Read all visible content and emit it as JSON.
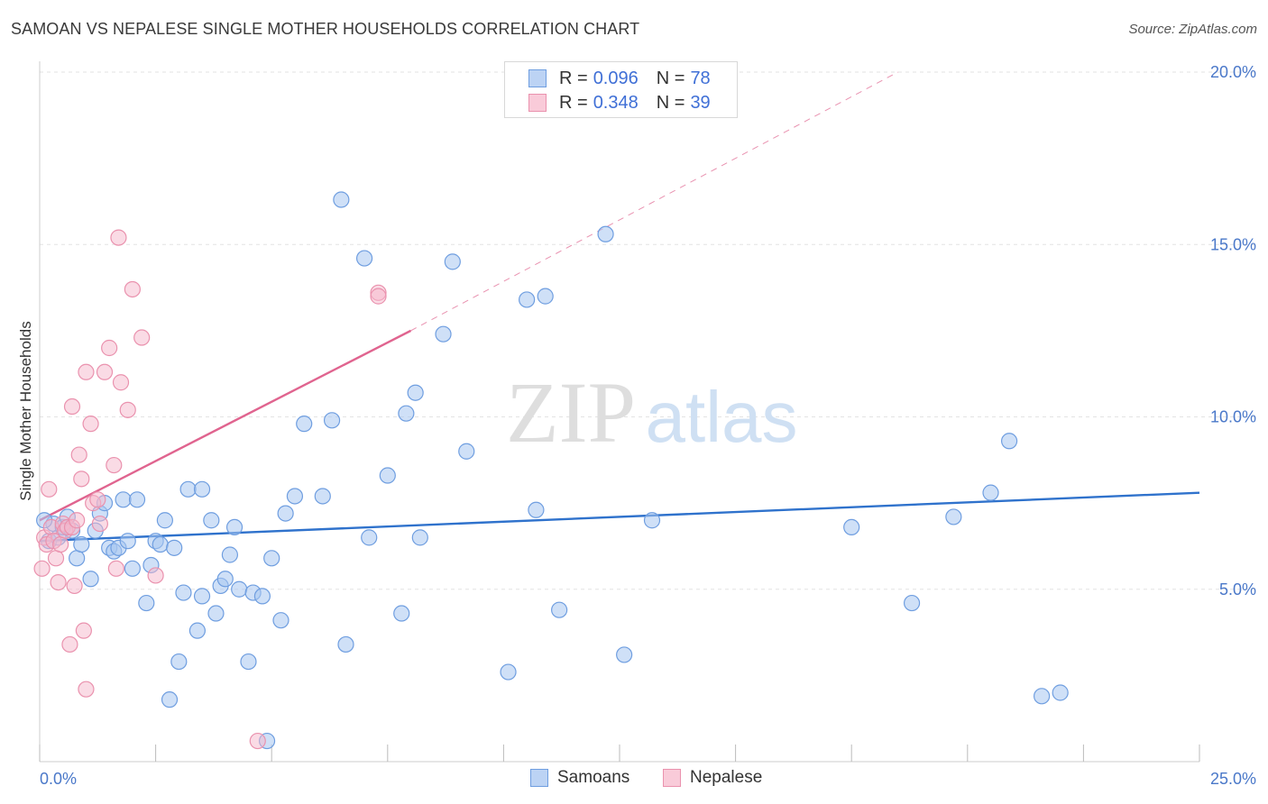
{
  "title": "SAMOAN VS NEPALESE SINGLE MOTHER HOUSEHOLDS CORRELATION CHART",
  "source": "Source: ZipAtlas.com",
  "watermark": {
    "zip": "ZIP",
    "atlas": "atlas"
  },
  "legend": {
    "rows": [
      {
        "r_label": "R =",
        "r_value": "0.096",
        "n_label": "N =",
        "n_value": "78"
      },
      {
        "r_label": "R =",
        "r_value": "0.348",
        "n_label": "N =",
        "n_value": "39"
      }
    ]
  },
  "colors": {
    "samoans_fill": "#a8c6f0",
    "samoans_stroke": "#6f9ee0",
    "samoans_line": "#2f72cc",
    "nepalese_fill": "#f6b8cb",
    "nepalese_stroke": "#ea92ae",
    "nepalese_line": "#e0648f",
    "tick_text": "#4a78c9"
  },
  "chart_data": {
    "type": "scatter",
    "title": "SAMOAN VS NEPALESE SINGLE MOTHER HOUSEHOLDS CORRELATION CHART",
    "xlabel": "",
    "ylabel": "Single Mother Households",
    "xlim": [
      0,
      25
    ],
    "ylim": [
      0,
      20
    ],
    "x_tick_labels": [
      "0.0%",
      "25.0%"
    ],
    "y_ticks": [
      5,
      10,
      15,
      20
    ],
    "y_tick_labels": [
      "5.0%",
      "10.0%",
      "15.0%",
      "20.0%"
    ],
    "grid": true,
    "legend_position": "top-center",
    "series": [
      {
        "name": "Samoans",
        "r": 0.096,
        "n": 78,
        "trend": {
          "x": [
            0,
            25
          ],
          "y": [
            6.4,
            7.8
          ]
        },
        "points": [
          [
            0.2,
            6.4
          ],
          [
            0.3,
            6.9
          ],
          [
            0.4,
            6.5
          ],
          [
            0.5,
            6.8
          ],
          [
            0.6,
            7.1
          ],
          [
            0.7,
            6.7
          ],
          [
            0.8,
            5.9
          ],
          [
            0.9,
            6.3
          ],
          [
            1.1,
            5.3
          ],
          [
            1.2,
            6.7
          ],
          [
            1.3,
            7.2
          ],
          [
            1.4,
            7.5
          ],
          [
            1.5,
            6.2
          ],
          [
            1.6,
            6.1
          ],
          [
            1.7,
            6.2
          ],
          [
            1.8,
            7.6
          ],
          [
            1.9,
            6.4
          ],
          [
            2.0,
            5.6
          ],
          [
            2.1,
            7.6
          ],
          [
            2.3,
            4.6
          ],
          [
            2.4,
            5.7
          ],
          [
            2.5,
            6.4
          ],
          [
            2.6,
            6.3
          ],
          [
            2.7,
            7.0
          ],
          [
            2.8,
            1.8
          ],
          [
            2.9,
            6.2
          ],
          [
            3.0,
            2.9
          ],
          [
            3.1,
            4.9
          ],
          [
            3.2,
            7.9
          ],
          [
            3.4,
            3.8
          ],
          [
            3.5,
            7.9
          ],
          [
            3.5,
            4.8
          ],
          [
            3.7,
            7.0
          ],
          [
            3.8,
            4.3
          ],
          [
            3.9,
            5.1
          ],
          [
            4.0,
            5.3
          ],
          [
            4.1,
            6.0
          ],
          [
            4.2,
            6.8
          ],
          [
            4.3,
            5.0
          ],
          [
            4.5,
            2.9
          ],
          [
            4.6,
            4.9
          ],
          [
            4.8,
            4.8
          ],
          [
            4.9,
            0.6
          ],
          [
            5.0,
            5.9
          ],
          [
            5.2,
            4.1
          ],
          [
            5.3,
            7.2
          ],
          [
            5.5,
            7.7
          ],
          [
            5.7,
            9.8
          ],
          [
            6.1,
            7.7
          ],
          [
            6.3,
            9.9
          ],
          [
            6.5,
            16.3
          ],
          [
            6.6,
            3.4
          ],
          [
            7.0,
            14.6
          ],
          [
            7.1,
            6.5
          ],
          [
            7.5,
            8.3
          ],
          [
            7.8,
            4.3
          ],
          [
            7.9,
            10.1
          ],
          [
            8.1,
            10.7
          ],
          [
            8.2,
            6.5
          ],
          [
            8.7,
            12.4
          ],
          [
            8.9,
            14.5
          ],
          [
            9.2,
            9.0
          ],
          [
            10.1,
            2.6
          ],
          [
            10.5,
            13.4
          ],
          [
            10.7,
            7.3
          ],
          [
            10.9,
            13.5
          ],
          [
            11.2,
            4.4
          ],
          [
            12.2,
            15.3
          ],
          [
            12.6,
            3.1
          ],
          [
            13.2,
            7.0
          ],
          [
            17.5,
            6.8
          ],
          [
            18.8,
            4.6
          ],
          [
            19.7,
            7.1
          ],
          [
            20.5,
            7.8
          ],
          [
            20.9,
            9.3
          ],
          [
            21.6,
            1.9
          ],
          [
            22.0,
            2.0
          ],
          [
            0.1,
            7.0
          ]
        ]
      },
      {
        "name": "Nepalese",
        "r": 0.348,
        "n": 39,
        "trend": {
          "x": [
            0,
            8
          ],
          "y": [
            7.0,
            12.5
          ],
          "dashed_to": {
            "x": 18.5,
            "y": 20.0
          }
        },
        "points": [
          [
            0.05,
            5.6
          ],
          [
            0.1,
            6.5
          ],
          [
            0.15,
            6.3
          ],
          [
            0.2,
            7.9
          ],
          [
            0.25,
            6.8
          ],
          [
            0.3,
            6.4
          ],
          [
            0.35,
            5.9
          ],
          [
            0.4,
            5.2
          ],
          [
            0.45,
            6.3
          ],
          [
            0.5,
            6.9
          ],
          [
            0.55,
            6.7
          ],
          [
            0.6,
            6.8
          ],
          [
            0.65,
            3.4
          ],
          [
            0.7,
            10.3
          ],
          [
            0.7,
            6.8
          ],
          [
            0.75,
            5.1
          ],
          [
            0.8,
            7.0
          ],
          [
            0.85,
            8.9
          ],
          [
            0.9,
            8.2
          ],
          [
            0.95,
            3.8
          ],
          [
            1.0,
            11.3
          ],
          [
            1.0,
            2.1
          ],
          [
            1.1,
            9.8
          ],
          [
            1.15,
            7.5
          ],
          [
            1.25,
            7.6
          ],
          [
            1.3,
            6.9
          ],
          [
            1.4,
            11.3
          ],
          [
            1.5,
            12.0
          ],
          [
            1.6,
            8.6
          ],
          [
            1.65,
            5.6
          ],
          [
            1.7,
            15.2
          ],
          [
            1.75,
            11.0
          ],
          [
            1.9,
            10.2
          ],
          [
            2.0,
            13.7
          ],
          [
            2.2,
            12.3
          ],
          [
            2.5,
            5.4
          ],
          [
            4.7,
            0.6
          ],
          [
            7.3,
            13.6
          ],
          [
            7.3,
            13.5
          ]
        ]
      }
    ]
  },
  "bottom_legend": {
    "samoans": "Samoans",
    "nepalese": "Nepalese"
  }
}
